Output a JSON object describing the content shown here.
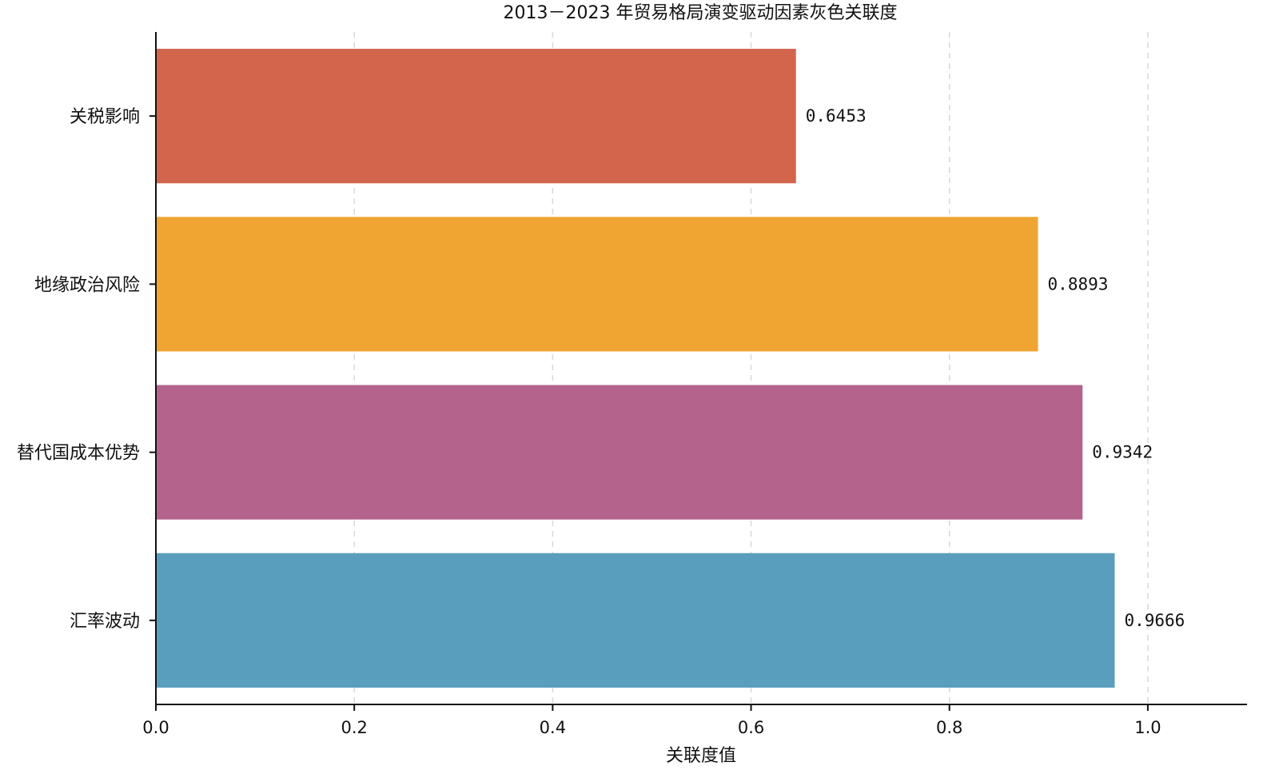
{
  "chart_data": {
    "type": "bar",
    "orientation": "horizontal",
    "title": "2013－2023 年贸易格局演变驱动因素灰色关联度",
    "xlabel": "关联度值",
    "ylabel": "",
    "xlim": [
      0,
      1.1
    ],
    "xticks": [
      0.0,
      0.2,
      0.4,
      0.6,
      0.8,
      1.0
    ],
    "xtick_labels": [
      "0.0",
      "0.2",
      "0.4",
      "0.6",
      "0.8",
      "1.0"
    ],
    "grid": "vertical dashed",
    "categories": [
      "关税影响",
      "地缘政治风险",
      "替代国成本优势",
      "汇率波动"
    ],
    "values": [
      0.6453,
      0.8893,
      0.9342,
      0.9666
    ],
    "value_labels": [
      "0.6453",
      "0.8893",
      "0.9342",
      "0.9666"
    ],
    "colors": [
      "#d2654c",
      "#f0a533",
      "#b4648c",
      "#5a9ebe"
    ]
  }
}
